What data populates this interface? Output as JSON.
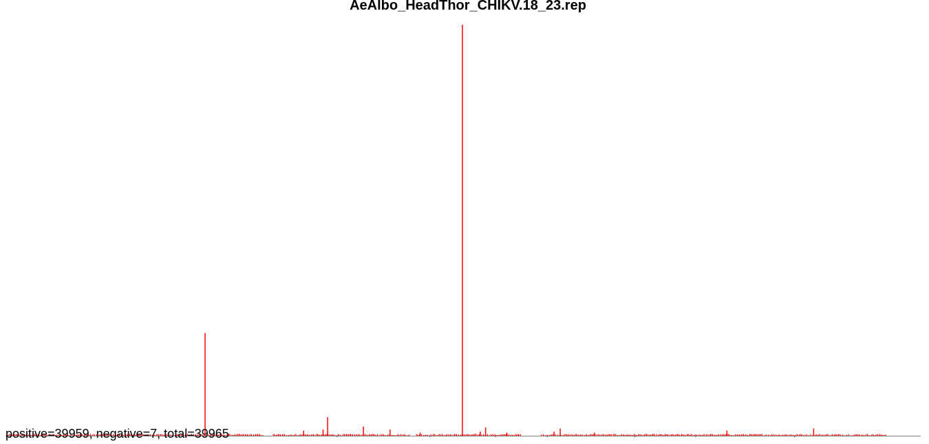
{
  "chart_data": {
    "type": "bar",
    "title": "AeAlbo_HeadThor_CHIKV.18_23.rep",
    "summary": "positive=39959, negative=7, total=39965",
    "x_range": [
      1,
      11826
    ],
    "y_range": [
      -1,
      21
    ],
    "colors": {
      "positive": "#ff0000",
      "negative": "#0000ff",
      "baseline": "#808080"
    },
    "positive_peaks": [
      {
        "x": 2605,
        "y": 5.0
      },
      {
        "x": 3900,
        "y": 0.25
      },
      {
        "x": 4155,
        "y": 0.3
      },
      {
        "x": 4215,
        "y": 0.9
      },
      {
        "x": 4685,
        "y": 0.45
      },
      {
        "x": 5035,
        "y": 0.3
      },
      {
        "x": 5430,
        "y": 0.15
      },
      {
        "x": 5985,
        "y": 20.0
      },
      {
        "x": 6220,
        "y": 0.2
      },
      {
        "x": 6290,
        "y": 0.4
      },
      {
        "x": 6570,
        "y": 0.15
      },
      {
        "x": 7190,
        "y": 0.2
      },
      {
        "x": 7270,
        "y": 0.35
      },
      {
        "x": 7720,
        "y": 0.15
      },
      {
        "x": 9460,
        "y": 0.25
      },
      {
        "x": 10600,
        "y": 0.35
      }
    ],
    "negative_peaks": [
      {
        "x": 4340,
        "y": -0.05
      },
      {
        "x": 5560,
        "y": -0.05
      },
      {
        "x": 6420,
        "y": -0.05
      },
      {
        "x": 7100,
        "y": -0.05
      },
      {
        "x": 8250,
        "y": -0.05
      },
      {
        "x": 9050,
        "y": -0.05
      },
      {
        "x": 10350,
        "y": -0.05
      }
    ],
    "low_coverage_segments": [
      [
        1,
        3370
      ],
      [
        3500,
        5300
      ],
      [
        5380,
        6750
      ],
      [
        7020,
        11560
      ]
    ]
  }
}
